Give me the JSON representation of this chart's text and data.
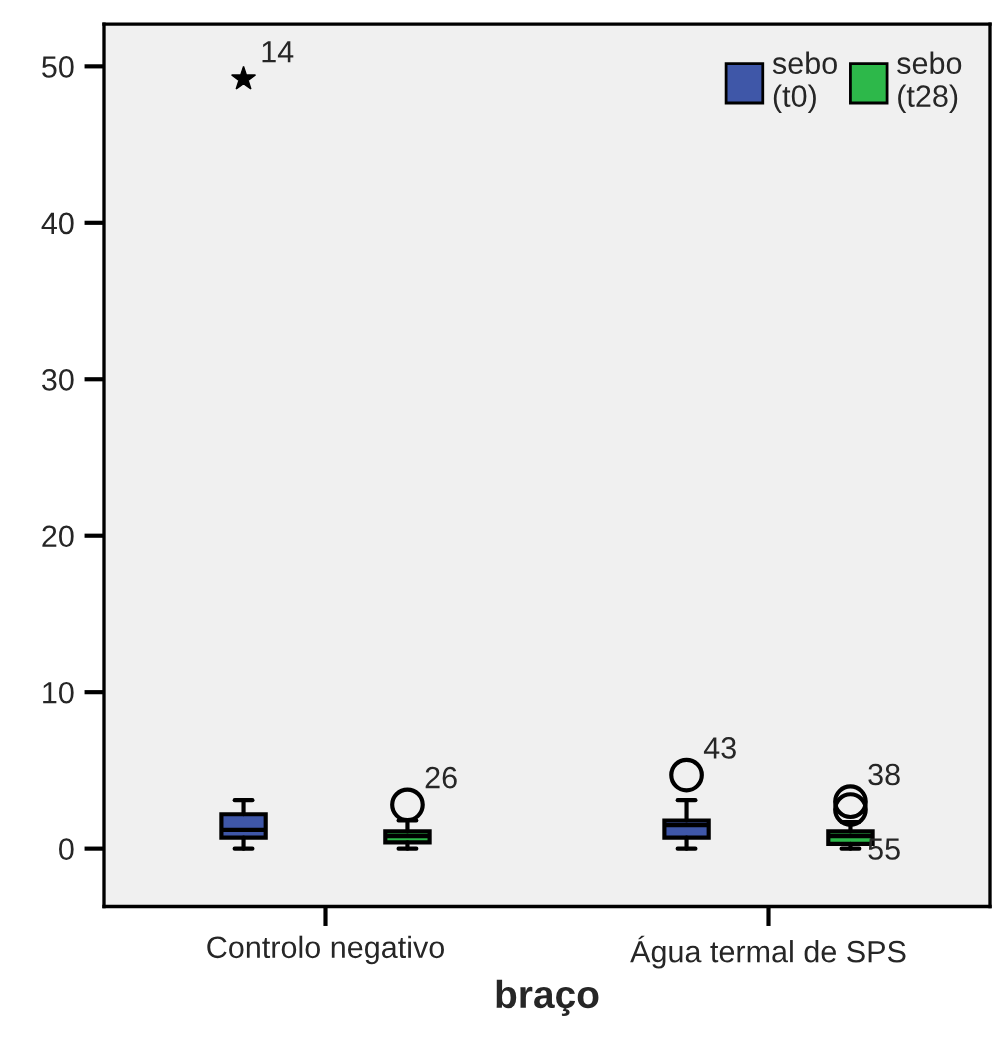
{
  "chart_data": {
    "type": "box",
    "xlabel": "braço",
    "categories": [
      "Controlo negativo",
      "Água termal de SPS"
    ],
    "series": [
      {
        "name": "sebo\n(t0)",
        "color": "#3f57a8",
        "boxes": [
          {
            "low": 0,
            "q1": 0.7,
            "median": 1.2,
            "q3": 2.2,
            "high": 3.1,
            "outliers": [
              49.2
            ]
          },
          {
            "low": 0,
            "q1": 0.7,
            "median": 1.5,
            "q3": 1.8,
            "high": 3.1,
            "outliers": [
              4.7
            ]
          }
        ]
      },
      {
        "name": "sebo\n(t28)",
        "color": "#2db84a",
        "boxes": [
          {
            "low": 0,
            "q1": 0.4,
            "median": 0.8,
            "q3": 1.1,
            "high": 1.8,
            "outliers": [
              2.8
            ]
          },
          {
            "low": 0,
            "q1": 0.3,
            "median": 0.8,
            "q3": 1.1,
            "high": 1.7,
            "outliers": [
              3.0,
              2.5
            ]
          }
        ]
      }
    ],
    "ylim": [
      -3.7,
      52.7
    ],
    "yticks": [
      0,
      10,
      20,
      30,
      40,
      50
    ],
    "grid": false,
    "legend": "top right",
    "annotations": [
      "14",
      "26",
      "43",
      "38",
      "55"
    ]
  }
}
